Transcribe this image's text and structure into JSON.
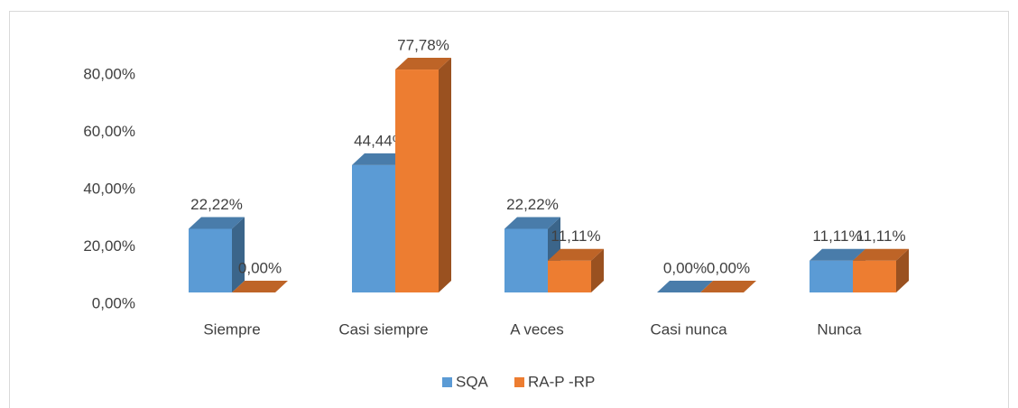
{
  "chart_data": {
    "type": "bar3d",
    "categories": [
      "Siempre",
      "Casi siempre",
      "A veces",
      "Casi nunca",
      "Nunca"
    ],
    "series": [
      {
        "name": "SQA",
        "color": "#5b9bd5",
        "values": [
          22.22,
          44.44,
          22.22,
          0,
          11.11
        ],
        "value_labels": [
          "22,22%",
          "44,44%",
          "22,22%",
          "0,00%",
          "11,11%"
        ]
      },
      {
        "name": "RA-P -RP",
        "color": "#ed7d31",
        "values": [
          0,
          77.78,
          11.11,
          0,
          11.11
        ],
        "value_labels": [
          "0,00%",
          "77,78%",
          "11,11%",
          "0,00%",
          "11,11%"
        ]
      }
    ],
    "ylim": [
      0,
      80
    ],
    "yticks": [
      {
        "value": 0,
        "label": "0,00%"
      },
      {
        "value": 20,
        "label": "20,00%"
      },
      {
        "value": 40,
        "label": "40,00%"
      },
      {
        "value": 60,
        "label": "60,00%"
      },
      {
        "value": 80,
        "label": "80,00%"
      }
    ],
    "grid": false,
    "legend": "bottom"
  }
}
